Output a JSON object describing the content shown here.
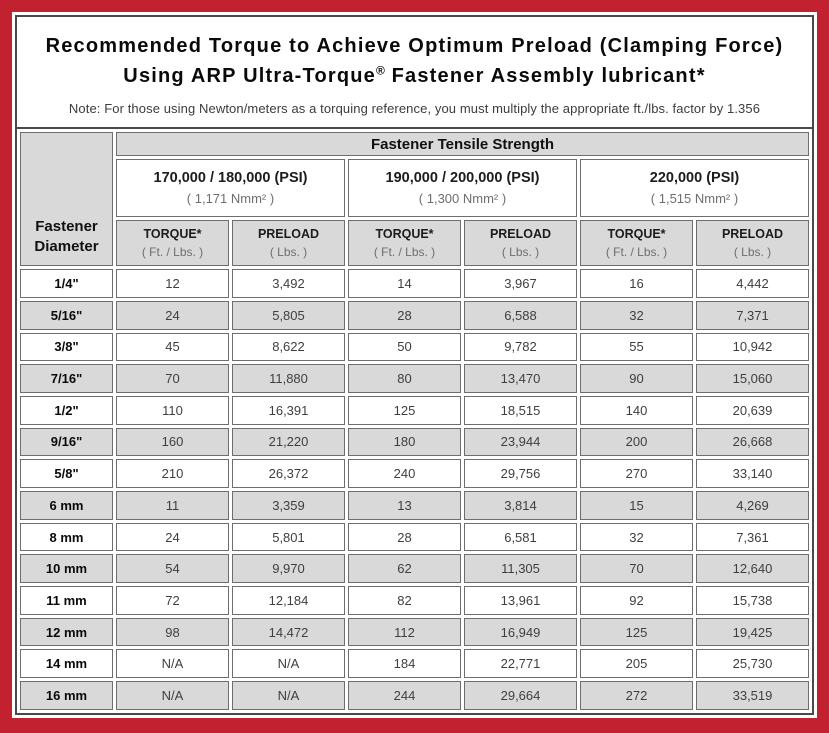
{
  "colors": {
    "frame_red": "#c2212f",
    "cell_gray": "#d9d9d9",
    "border_dark": "#4a4a4a"
  },
  "title": {
    "line1": "Recommended Torque to Achieve Optimum Preload (Clamping Force)",
    "line2_pre": "Using ARP Ultra-Torque",
    "line2_reg": "®",
    "line2_post": " Fastener Assembly lubricant*"
  },
  "note": "Note: For those using Newton/meters as a torquing reference, you must multiply the appropriate ft./lbs. factor by 1.356",
  "table": {
    "tensile_header": "Fastener Tensile Strength",
    "diameter_header": "Fastener Diameter",
    "groups": [
      {
        "psi": "170,000 / 180,000 (PSI)",
        "nmm": "( 1,171 Nmm² )"
      },
      {
        "psi": "190,000 / 200,000 (PSI)",
        "nmm": "( 1,300 Nmm² )"
      },
      {
        "psi": "220,000 (PSI)",
        "nmm": "( 1,515 Nmm² )"
      }
    ],
    "columns": [
      {
        "label": "TORQUE*",
        "sub": "( Ft. / Lbs. )"
      },
      {
        "label": "PRELOAD",
        "sub": "( Lbs. )"
      },
      {
        "label": "TORQUE*",
        "sub": "( Ft. / Lbs. )"
      },
      {
        "label": "PRELOAD",
        "sub": "( Lbs. )"
      },
      {
        "label": "TORQUE*",
        "sub": "( Ft. / Lbs. )"
      },
      {
        "label": "PRELOAD",
        "sub": "( Lbs. )"
      }
    ],
    "rows": [
      {
        "diameter": "1/4\"",
        "values": [
          "12",
          "3,492",
          "14",
          "3,967",
          "16",
          "4,442"
        ]
      },
      {
        "diameter": "5/16\"",
        "values": [
          "24",
          "5,805",
          "28",
          "6,588",
          "32",
          "7,371"
        ]
      },
      {
        "diameter": "3/8\"",
        "values": [
          "45",
          "8,622",
          "50",
          "9,782",
          "55",
          "10,942"
        ]
      },
      {
        "diameter": "7/16\"",
        "values": [
          "70",
          "11,880",
          "80",
          "13,470",
          "90",
          "15,060"
        ]
      },
      {
        "diameter": "1/2\"",
        "values": [
          "110",
          "16,391",
          "125",
          "18,515",
          "140",
          "20,639"
        ]
      },
      {
        "diameter": "9/16\"",
        "values": [
          "160",
          "21,220",
          "180",
          "23,944",
          "200",
          "26,668"
        ]
      },
      {
        "diameter": "5/8\"",
        "values": [
          "210",
          "26,372",
          "240",
          "29,756",
          "270",
          "33,140"
        ]
      },
      {
        "diameter": "6 mm",
        "values": [
          "11",
          "3,359",
          "13",
          "3,814",
          "15",
          "4,269"
        ]
      },
      {
        "diameter": "8 mm",
        "values": [
          "24",
          "5,801",
          "28",
          "6,581",
          "32",
          "7,361"
        ]
      },
      {
        "diameter": "10 mm",
        "values": [
          "54",
          "9,970",
          "62",
          "11,305",
          "70",
          "12,640"
        ]
      },
      {
        "diameter": "11 mm",
        "values": [
          "72",
          "12,184",
          "82",
          "13,961",
          "92",
          "15,738"
        ]
      },
      {
        "diameter": "12 mm",
        "values": [
          "98",
          "14,472",
          "112",
          "16,949",
          "125",
          "19,425"
        ]
      },
      {
        "diameter": "14 mm",
        "values": [
          "N/A",
          "N/A",
          "184",
          "22,771",
          "205",
          "25,730"
        ]
      },
      {
        "diameter": "16 mm",
        "values": [
          "N/A",
          "N/A",
          "244",
          "29,664",
          "272",
          "33,519"
        ]
      }
    ]
  }
}
